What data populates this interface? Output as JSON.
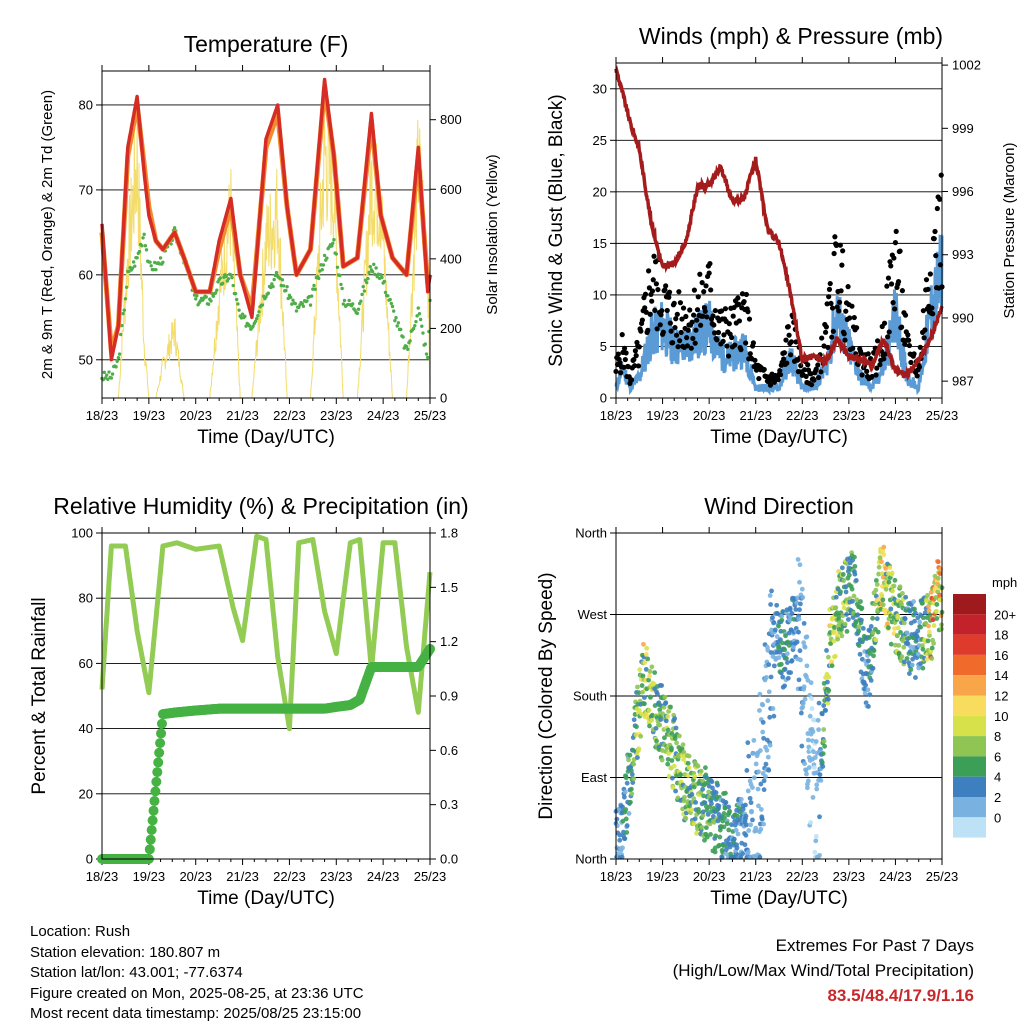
{
  "xticks": [
    "18/23",
    "19/23",
    "20/23",
    "21/23",
    "22/23",
    "23/23",
    "24/23",
    "25/23"
  ],
  "xlabel": "Time (Day/UTC)",
  "colors": {
    "t2m": "#d62c26",
    "t9m": "#f28a2e",
    "td": "#4fae4a",
    "solar": "#f3dc6a",
    "gust": "#000000",
    "wind": "#5b9bd5",
    "pressure": "#a31b1b",
    "rh": "#93cc55",
    "precip": "#45b243"
  },
  "temp": {
    "title": "Temperature (F)",
    "ylabel": "2m & 9m T (Red, Orange) & 2m Td (Green)",
    "ylabel2": "Solar Insolation (Yellow)",
    "yticks": [
      "50",
      "60",
      "70",
      "80"
    ],
    "y2ticks": [
      "0",
      "200",
      "400",
      "600",
      "800"
    ],
    "ylim": [
      45.5,
      84
    ],
    "y2lim": [
      0,
      940
    ]
  },
  "winds": {
    "title": "Winds (mph) & Pressure (mb)",
    "ylabel": "Sonic Wind & Gust (Blue, Black)",
    "ylabel2": "Station Pressure (Maroon)",
    "yticks": [
      "0",
      "5",
      "10",
      "15",
      "20",
      "25",
      "30"
    ],
    "y2ticks": [
      "987",
      "990",
      "993",
      "996",
      "999",
      "1002"
    ],
    "ylim": [
      0,
      32.5
    ],
    "y2lim": [
      986.2,
      1002.1
    ]
  },
  "rh": {
    "title": "Relative Humidity (%) & Precipitation (in)",
    "ylabel": "Percent & Total Rainfall",
    "yticks": [
      "0",
      "20",
      "40",
      "60",
      "80",
      "100"
    ],
    "y2ticks": [
      "0.0",
      "0.3",
      "0.6",
      "0.9",
      "1.2",
      "1.5",
      "1.8"
    ],
    "ylim": [
      0,
      100
    ],
    "y2lim": [
      0,
      1.8
    ]
  },
  "wdir": {
    "title": "Wind Direction",
    "ylabel": "Direction (Colored By Speed)",
    "yticks": [
      "North",
      "East",
      "South",
      "West",
      "North"
    ],
    "legend_title": "mph",
    "legend_labels": [
      "20+",
      "18",
      "16",
      "14",
      "12",
      "10",
      "8",
      "6",
      "4",
      "2",
      "0"
    ],
    "legend_colors": [
      "#9e1a1d",
      "#c4222a",
      "#df3b2c",
      "#f06a2b",
      "#f9a54a",
      "#f8dc5d",
      "#d7e24a",
      "#8ec553",
      "#3c9f57",
      "#3d7fbf",
      "#79b2e0",
      "#bde2f5"
    ]
  },
  "info": {
    "location": "Location: Rush",
    "elevation": "Station elevation: 180.807 m",
    "latlon": "Station lat/lon: 43.001; -77.6374",
    "created": "Figure created on Mon, 2025-08-25, at 23:36 UTC",
    "recent": "Most recent data timestamp: 2025/08/25 23:15:00"
  },
  "extremes": {
    "line1": "Extremes For Past 7 Days",
    "line2": "(High/Low/Max Wind/Total Precipitation)",
    "values": "83.5/48.4/17.9/1.16"
  },
  "chart_data": [
    {
      "type": "line",
      "title": "Temperature (F)",
      "xlabel": "Time (Day/UTC)",
      "ylabel": "2m & 9m T (Red, Orange) & 2m Td (Green)",
      "ylabel2": "Solar Insolation (Yellow)",
      "ylim": [
        45.5,
        84
      ],
      "y2lim": [
        0,
        940
      ],
      "x": [
        0,
        0.2,
        0.35,
        0.55,
        0.75,
        0.9,
        1.0,
        1.15,
        1.3,
        1.55,
        1.75,
        2.0,
        2.3,
        2.5,
        2.75,
        2.95,
        3.2,
        3.5,
        3.75,
        3.95,
        4.15,
        4.45,
        4.75,
        4.95,
        5.15,
        5.45,
        5.75,
        5.95,
        6.2,
        6.5,
        6.75,
        6.95,
        7.0
      ],
      "series": [
        {
          "name": "2m T",
          "values": [
            66,
            50,
            54,
            75,
            81,
            72,
            67,
            64,
            63,
            65,
            62,
            58,
            58,
            64,
            69,
            60,
            55,
            76,
            80,
            68,
            60,
            63,
            83,
            74,
            61,
            62,
            79,
            67,
            62,
            60,
            75,
            58,
            60
          ]
        },
        {
          "name": "9m T",
          "values": [
            65,
            51,
            54,
            74,
            80,
            73,
            68,
            64,
            63,
            65,
            62,
            58,
            58,
            63,
            68,
            60,
            56,
            75,
            79,
            68,
            60,
            63,
            82,
            74,
            61,
            62,
            78,
            67,
            62,
            60,
            74,
            59,
            60
          ]
        },
        {
          "name": "2m Td",
          "values": [
            48,
            48,
            50,
            60,
            62,
            65,
            61,
            61,
            62,
            65,
            62,
            57,
            57,
            59,
            60,
            55,
            54,
            58,
            60,
            58,
            56,
            57,
            62,
            64,
            57,
            56,
            61,
            60,
            56,
            51,
            56,
            50,
            57
          ]
        },
        {
          "name": "Solar Insolation",
          "values": [
            0,
            0,
            0,
            520,
            880,
            200,
            0,
            0,
            120,
            250,
            0,
            0,
            0,
            380,
            690,
            0,
            0,
            570,
            700,
            0,
            0,
            0,
            900,
            750,
            0,
            0,
            790,
            720,
            0,
            0,
            860,
            520,
            0
          ]
        }
      ]
    },
    {
      "type": "line",
      "title": "Winds (mph) & Pressure (mb)",
      "xlabel": "Time (Day/UTC)",
      "ylabel": "Sonic Wind & Gust (Blue, Black)",
      "ylabel2": "Station Pressure (Maroon)",
      "ylim": [
        0,
        32.5
      ],
      "y2lim": [
        986.2,
        1002.1
      ],
      "x": [
        0,
        0.15,
        0.3,
        0.5,
        0.75,
        1.0,
        1.25,
        1.5,
        1.75,
        2.0,
        2.25,
        2.5,
        2.75,
        3.0,
        3.25,
        3.5,
        3.75,
        4.0,
        4.25,
        4.5,
        4.75,
        5.0,
        5.25,
        5.5,
        5.75,
        6.0,
        6.25,
        6.5,
        6.75,
        7.0
      ],
      "series": [
        {
          "name": "Gust",
          "values": [
            3,
            5,
            2,
            5,
            12,
            10,
            8,
            8,
            9,
            11,
            7,
            7,
            9,
            3,
            2,
            2,
            7,
            3,
            2,
            6,
            14,
            8,
            4,
            3,
            6,
            15,
            5,
            3,
            14,
            18
          ]
        },
        {
          "name": "Wind",
          "values": [
            1,
            3,
            1,
            2,
            6,
            7,
            5,
            5,
            6,
            7,
            4,
            4,
            5,
            1,
            1,
            1,
            4,
            1,
            1,
            3,
            8,
            5,
            2,
            1,
            3,
            8,
            2,
            1,
            8,
            12
          ]
        },
        {
          "name": "Pressure",
          "values": [
            1001.8,
            1000.6,
            999.3,
            998.0,
            994.6,
            992.4,
            992.6,
            993.6,
            996.2,
            996.3,
            997.2,
            995.5,
            995.7,
            997.5,
            994.2,
            993.6,
            991.1,
            988.0,
            988.2,
            987.9,
            989.0,
            988.2,
            988.0,
            987.8,
            989.0,
            987.5,
            987.3,
            988.0,
            989.0,
            990.5
          ]
        }
      ]
    },
    {
      "type": "line",
      "title": "Relative Humidity (%) & Precipitation (in)",
      "xlabel": "Time (Day/UTC)",
      "ylabel": "Percent & Total Rainfall",
      "ylim": [
        0,
        100
      ],
      "y2lim": [
        0,
        1.8
      ],
      "x": [
        0,
        0.2,
        0.5,
        0.75,
        1.0,
        1.3,
        1.6,
        2.0,
        2.5,
        2.8,
        3.0,
        3.3,
        3.5,
        3.75,
        4.0,
        4.2,
        4.5,
        4.75,
        5.0,
        5.3,
        5.5,
        5.75,
        6.0,
        6.25,
        6.5,
        6.75,
        7.0
      ],
      "series": [
        {
          "name": "Relative Humidity",
          "values": [
            52,
            96,
            96,
            70,
            51,
            96,
            97,
            95,
            96,
            77,
            67,
            99,
            98,
            62,
            40,
            97,
            98,
            76,
            63,
            97,
            98,
            58,
            97,
            97,
            65,
            45,
            88
          ]
        },
        {
          "name": "Total Precipitation",
          "values": [
            0,
            0,
            0,
            0,
            0,
            0.8,
            0.81,
            0.82,
            0.83,
            0.83,
            0.83,
            0.83,
            0.83,
            0.83,
            0.83,
            0.83,
            0.83,
            0.83,
            0.84,
            0.85,
            0.88,
            1.06,
            1.06,
            1.06,
            1.06,
            1.06,
            1.16
          ]
        }
      ]
    },
    {
      "type": "scatter",
      "title": "Wind Direction",
      "xlabel": "Time (Day/UTC)",
      "ylabel": "Direction (Colored By Speed)",
      "ylim": [
        0,
        360
      ],
      "x": [
        0.1,
        0.6,
        0.8,
        0.9,
        1.3,
        1.5,
        1.9,
        2.2,
        2.4,
        2.6,
        3.0,
        3.4,
        3.6,
        3.9,
        4.3,
        4.6,
        4.8,
        5.1,
        5.4,
        5.7,
        5.9,
        6.2,
        6.5,
        6.8,
        6.9
      ],
      "series": [
        {
          "name": "Direction",
          "values": [
            20,
            200,
            170,
            160,
            110,
            80,
            60,
            45,
            30,
            25,
            40,
            250,
            230,
            260,
            50,
            240,
            280,
            300,
            200,
            320,
            280,
            250,
            240,
            260,
            290
          ]
        },
        {
          "name": "Speed",
          "values": [
            3,
            9,
            7,
            6,
            7,
            7,
            6,
            5,
            4,
            4,
            2,
            3,
            5,
            3,
            1,
            9,
            7,
            6,
            3,
            10,
            8,
            6,
            3,
            13,
            11
          ]
        }
      ]
    }
  ]
}
